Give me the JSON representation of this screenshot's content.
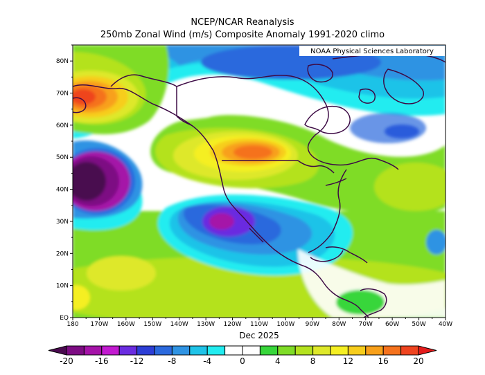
{
  "title": {
    "line1": "NCEP/NCAR Reanalysis",
    "line2": "250mb Zonal Wind (m/s) Composite Anomaly 1991-2020 climo"
  },
  "credit": "NOAA Physical Sciences Laboratory",
  "period_label": "Dec 2025",
  "lat_ticks": [
    "80N",
    "70N",
    "60N",
    "50N",
    "40N",
    "30N",
    "20N",
    "10N",
    "EQ"
  ],
  "lon_ticks": [
    "180",
    "170W",
    "160W",
    "150W",
    "140W",
    "130W",
    "120W",
    "110W",
    "100W",
    "90W",
    "80W",
    "70W",
    "60W",
    "50W",
    "40W"
  ],
  "colorbar": {
    "labels": [
      "-20",
      "-16",
      "-12",
      "-8",
      "-4",
      "0",
      "4",
      "8",
      "12",
      "16",
      "20"
    ],
    "colors": [
      "#4a0a4f",
      "#7d0c83",
      "#a513a8",
      "#c21ad0",
      "#6a2ce0",
      "#2d3ed6",
      "#2b69dd",
      "#2f93e3",
      "#1fc3e8",
      "#22ecf0",
      "#ffffff",
      "#ffffff",
      "#37d63a",
      "#7fdc27",
      "#b4e21f",
      "#dee82a",
      "#f5ef23",
      "#f7cd1c",
      "#f8a01a",
      "#f5721d",
      "#ef441f",
      "#e41c1c"
    ]
  },
  "colors": {
    "land_outline": "#3d0b45",
    "frame": "#000000",
    "background": "#ffffff"
  }
}
